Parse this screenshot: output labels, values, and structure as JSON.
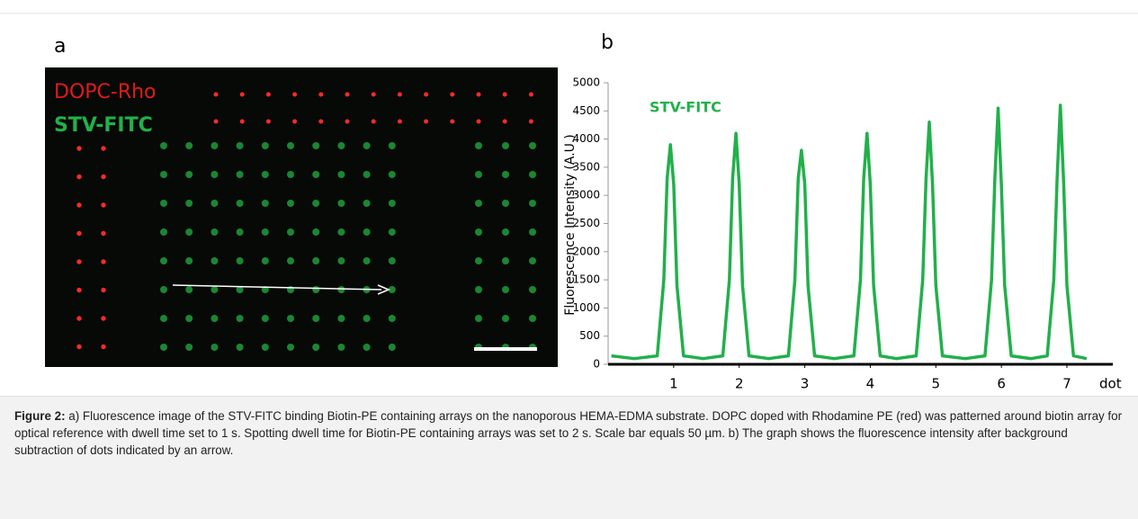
{
  "panel_a": {
    "label": "a",
    "legend": [
      "DOPC-Rho",
      "STV-FITC"
    ]
  },
  "chart_data": {
    "type": "line",
    "panel_label": "b",
    "y_label": "Fluorescence Intensity (A.U.)",
    "x_label": "dot",
    "annotation": "STV-FITC",
    "xlim": [
      0,
      7.7
    ],
    "xticks": [
      1,
      2,
      3,
      4,
      5,
      6,
      7
    ],
    "ylim": [
      0,
      5000
    ],
    "yticks": [
      0,
      500,
      1000,
      1500,
      2000,
      2500,
      3000,
      3500,
      4000,
      4500,
      5000
    ],
    "series": [
      {
        "name": "STV-FITC",
        "color": "#22b04b",
        "x": [
          0.05,
          0.4,
          0.75,
          0.85,
          0.9,
          0.95,
          1.0,
          1.05,
          1.15,
          1.45,
          1.75,
          1.85,
          1.9,
          1.95,
          2.0,
          2.05,
          2.15,
          2.45,
          2.75,
          2.85,
          2.9,
          2.95,
          3.0,
          3.05,
          3.15,
          3.45,
          3.75,
          3.85,
          3.9,
          3.95,
          4.0,
          4.05,
          4.15,
          4.4,
          4.7,
          4.8,
          4.85,
          4.9,
          4.95,
          5.0,
          5.1,
          5.45,
          5.75,
          5.85,
          5.9,
          5.95,
          6.0,
          6.05,
          6.15,
          6.45,
          6.7,
          6.8,
          6.85,
          6.9,
          6.95,
          7.0,
          7.1,
          7.3
        ],
        "values": [
          150,
          100,
          150,
          1500,
          3300,
          3900,
          3200,
          1400,
          150,
          100,
          150,
          1500,
          3300,
          4100,
          3200,
          1400,
          150,
          100,
          150,
          1500,
          3300,
          3800,
          3200,
          1400,
          150,
          100,
          150,
          1500,
          3300,
          4100,
          3200,
          1400,
          150,
          100,
          150,
          1500,
          3300,
          4300,
          3200,
          1400,
          150,
          100,
          150,
          1500,
          3300,
          4550,
          3200,
          1400,
          150,
          100,
          150,
          1500,
          3300,
          4600,
          3200,
          1400,
          150,
          100
        ]
      }
    ]
  },
  "caption": {
    "label": "Figure 2:",
    "text": "a) Fluorescence image of the STV-FITC binding Biotin-PE containing arrays on the nanoporous HEMA-EDMA substrate. DOPC doped with Rhodamine PE (red) was patterned around biotin array for optical reference with dwell time set to 1 s. Spotting dwell time for Biotin-PE containing arrays was set to 2 s. Scale bar equals 50 µm. b) The graph shows the fluorescence intensity after background subtraction of dots indicated by an arrow."
  }
}
